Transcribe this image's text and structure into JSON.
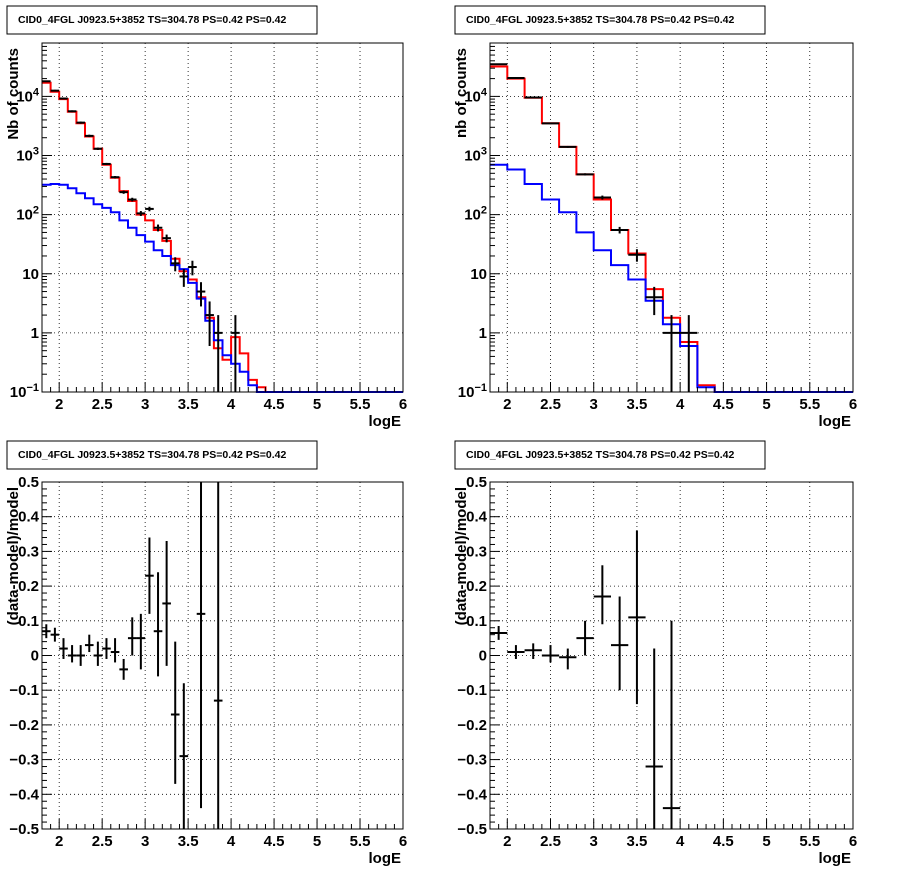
{
  "chart_data": [
    {
      "type": "histogram",
      "title": "CID0_4FGL J0923.5+3852 TS=304.78 PS=0.42 PS=0.42",
      "xlabel": "logE",
      "ylabel": "Nb of counts",
      "xlim": [
        1.8,
        6.0
      ],
      "ylim": [
        0.1,
        80000
      ],
      "yscale": "log",
      "grid": true,
      "x_ticks": [
        "2",
        "2.5",
        "3",
        "3.5",
        "4",
        "4.5",
        "5",
        "5.5",
        "6"
      ],
      "y_ticks": [
        "10^-1",
        "1",
        "10",
        "10^2",
        "10^3",
        "10^4"
      ],
      "bin_edges": [
        1.8,
        1.9,
        2.0,
        2.1,
        2.2,
        2.3,
        2.4,
        2.5,
        2.6,
        2.7,
        2.8,
        2.9,
        3.0,
        3.1,
        3.2,
        3.3,
        3.4,
        3.5,
        3.6,
        3.7,
        3.8,
        3.9,
        4.0,
        4.1,
        4.2,
        4.3,
        4.4,
        4.5,
        4.6,
        4.7,
        4.8,
        4.9,
        5.0,
        5.1,
        5.2,
        5.3,
        5.4,
        5.5,
        5.6,
        5.7,
        5.8,
        5.9,
        6.0
      ],
      "series": [
        {
          "color": "#ff0000",
          "values": [
            17000,
            12000,
            9000,
            5500,
            3500,
            2100,
            1300,
            700,
            420,
            250,
            170,
            100,
            80,
            55,
            36,
            18,
            11,
            8,
            4,
            1.8,
            0.55,
            0.35,
            0.85,
            0.45,
            0.16,
            0.12,
            0.1,
            0.1,
            0.1,
            0.1,
            0.1,
            0.1,
            0.1,
            0.1,
            0.1,
            0.1,
            0.1,
            0.1,
            0.1,
            0.1,
            0.1,
            0.1
          ]
        },
        {
          "color": "#0000ff",
          "values": [
            320,
            330,
            320,
            280,
            230,
            190,
            150,
            130,
            110,
            80,
            60,
            45,
            35,
            25,
            20,
            14,
            12,
            7,
            3.8,
            1.6,
            0.75,
            0.42,
            0.3,
            0.22,
            0.13,
            0.1,
            0.1,
            0.1,
            0.1,
            0.1,
            0.1,
            0.1,
            0.1,
            0.1,
            0.1,
            0.1,
            0.1,
            0.1,
            0.1,
            0.1,
            0.1,
            0.1
          ]
        }
      ],
      "points": [
        {
          "x": 1.85,
          "xerr": 0.05,
          "y": 18000,
          "ylo": 17500,
          "yhi": 18500
        },
        {
          "x": 1.95,
          "xerr": 0.05,
          "y": 12500,
          "ylo": 12100,
          "yhi": 12900
        },
        {
          "x": 2.05,
          "xerr": 0.05,
          "y": 9200,
          "ylo": 8900,
          "yhi": 9500
        },
        {
          "x": 2.15,
          "xerr": 0.05,
          "y": 5600,
          "ylo": 5400,
          "yhi": 5800
        },
        {
          "x": 2.25,
          "xerr": 0.05,
          "y": 3600,
          "ylo": 3450,
          "yhi": 3750
        },
        {
          "x": 2.35,
          "xerr": 0.05,
          "y": 2150,
          "ylo": 2050,
          "yhi": 2250
        },
        {
          "x": 2.45,
          "xerr": 0.05,
          "y": 1300,
          "ylo": 1240,
          "yhi": 1360
        },
        {
          "x": 2.55,
          "xerr": 0.05,
          "y": 720,
          "ylo": 690,
          "yhi": 750
        },
        {
          "x": 2.65,
          "xerr": 0.05,
          "y": 430,
          "ylo": 410,
          "yhi": 450
        },
        {
          "x": 2.75,
          "xerr": 0.05,
          "y": 240,
          "ylo": 225,
          "yhi": 255
        },
        {
          "x": 2.85,
          "xerr": 0.05,
          "y": 180,
          "ylo": 167,
          "yhi": 193
        },
        {
          "x": 2.95,
          "xerr": 0.05,
          "y": 105,
          "ylo": 95,
          "yhi": 115
        },
        {
          "x": 3.05,
          "xerr": 0.05,
          "y": 125,
          "ylo": 114,
          "yhi": 136
        },
        {
          "x": 3.15,
          "xerr": 0.05,
          "y": 60,
          "ylo": 52,
          "yhi": 68
        },
        {
          "x": 3.25,
          "xerr": 0.05,
          "y": 40,
          "ylo": 34,
          "yhi": 46
        },
        {
          "x": 3.35,
          "xerr": 0.05,
          "y": 15,
          "ylo": 11,
          "yhi": 19
        },
        {
          "x": 3.45,
          "xerr": 0.05,
          "y": 9,
          "ylo": 6,
          "yhi": 12
        },
        {
          "x": 3.55,
          "xerr": 0.05,
          "y": 13,
          "ylo": 9.4,
          "yhi": 16.6
        },
        {
          "x": 3.65,
          "xerr": 0.05,
          "y": 5,
          "ylo": 2.8,
          "yhi": 7.2
        },
        {
          "x": 3.75,
          "xerr": 0.05,
          "y": 2,
          "ylo": 0.6,
          "yhi": 3.4
        },
        {
          "x": 3.85,
          "xerr": 0.05,
          "y": 1,
          "ylo": 0.1,
          "yhi": 2
        },
        {
          "x": 4.05,
          "xerr": 0.05,
          "y": 1,
          "ylo": 0.1,
          "yhi": 2
        }
      ]
    },
    {
      "type": "histogram",
      "title": "CID0_4FGL J0923.5+3852 TS=304.78 PS=0.42 PS=0.42",
      "xlabel": "logE",
      "ylabel": "nb of counts",
      "xlim": [
        1.8,
        6.0
      ],
      "ylim": [
        0.1,
        80000
      ],
      "yscale": "log",
      "grid": true,
      "x_ticks": [
        "2",
        "2.5",
        "3",
        "3.5",
        "4",
        "4.5",
        "5",
        "5.5",
        "6"
      ],
      "y_ticks": [
        "10^-1",
        "1",
        "10",
        "10^2",
        "10^3",
        "10^4"
      ],
      "bin_edges": [
        1.8,
        2.0,
        2.2,
        2.4,
        2.6,
        2.8,
        3.0,
        3.2,
        3.4,
        3.6,
        3.8,
        4.0,
        4.2,
        4.4,
        4.6,
        4.8,
        5.0,
        5.2,
        5.4,
        5.6,
        5.8,
        6.0
      ],
      "series": [
        {
          "color": "#ff0000",
          "values": [
            32000,
            20000,
            9500,
            3500,
            1400,
            480,
            180,
            55,
            22,
            5.5,
            1.8,
            0.7,
            0.13,
            0.1,
            0.1,
            0.1,
            0.1,
            0.1,
            0.1,
            0.1,
            0.1
          ]
        },
        {
          "color": "#0000ff",
          "values": [
            700,
            580,
            330,
            180,
            110,
            50,
            25,
            14,
            8,
            3.5,
            1.4,
            0.6,
            0.12,
            0.1,
            0.1,
            0.1,
            0.1,
            0.1,
            0.1,
            0.1,
            0.1
          ]
        }
      ],
      "points": [
        {
          "x": 1.9,
          "xerr": 0.1,
          "y": 35000,
          "ylo": 34000,
          "yhi": 36000
        },
        {
          "x": 2.1,
          "xerr": 0.1,
          "y": 20500,
          "ylo": 20000,
          "yhi": 21000
        },
        {
          "x": 2.3,
          "xerr": 0.1,
          "y": 9600,
          "ylo": 9300,
          "yhi": 9900
        },
        {
          "x": 2.5,
          "xerr": 0.1,
          "y": 3500,
          "ylo": 3400,
          "yhi": 3600
        },
        {
          "x": 2.7,
          "xerr": 0.1,
          "y": 1400,
          "ylo": 1350,
          "yhi": 1450
        },
        {
          "x": 2.9,
          "xerr": 0.1,
          "y": 480,
          "ylo": 460,
          "yhi": 500
        },
        {
          "x": 3.1,
          "xerr": 0.1,
          "y": 195,
          "ylo": 180,
          "yhi": 210
        },
        {
          "x": 3.3,
          "xerr": 0.1,
          "y": 55,
          "ylo": 48,
          "yhi": 62
        },
        {
          "x": 3.5,
          "xerr": 0.1,
          "y": 21,
          "ylo": 16,
          "yhi": 26
        },
        {
          "x": 3.7,
          "xerr": 0.1,
          "y": 4,
          "ylo": 2,
          "yhi": 6
        },
        {
          "x": 3.9,
          "xerr": 0.1,
          "y": 1,
          "ylo": 0.1,
          "yhi": 2
        },
        {
          "x": 4.1,
          "xerr": 0.1,
          "y": 1,
          "ylo": 0.1,
          "yhi": 2
        }
      ]
    },
    {
      "type": "scatter",
      "title": "CID0_4FGL J0923.5+3852 TS=304.78 PS=0.42 PS=0.42",
      "xlabel": "logE",
      "ylabel": "(data-model)/model",
      "xlim": [
        1.8,
        6.0
      ],
      "ylim": [
        -0.5,
        0.5
      ],
      "yscale": "linear",
      "grid": true,
      "x_ticks": [
        "2",
        "2.5",
        "3",
        "3.5",
        "4",
        "4.5",
        "5",
        "5.5",
        "6"
      ],
      "y_ticks": [
        "-0.5",
        "-0.4",
        "-0.3",
        "-0.2",
        "-0.1",
        "0",
        "0.1",
        "0.2",
        "0.3",
        "0.4",
        "0.5"
      ],
      "points": [
        {
          "x": 1.85,
          "xerr": 0.05,
          "y": 0.07,
          "ylo": 0.05,
          "yhi": 0.09
        },
        {
          "x": 1.95,
          "xerr": 0.05,
          "y": 0.06,
          "ylo": 0.04,
          "yhi": 0.08
        },
        {
          "x": 2.05,
          "xerr": 0.05,
          "y": 0.02,
          "ylo": -0.01,
          "yhi": 0.05
        },
        {
          "x": 2.15,
          "xerr": 0.05,
          "y": 0.0,
          "ylo": -0.02,
          "yhi": 0.03
        },
        {
          "x": 2.25,
          "xerr": 0.05,
          "y": 0.0,
          "ylo": -0.03,
          "yhi": 0.03
        },
        {
          "x": 2.35,
          "xerr": 0.05,
          "y": 0.03,
          "ylo": 0.01,
          "yhi": 0.06
        },
        {
          "x": 2.45,
          "xerr": 0.05,
          "y": 0.0,
          "ylo": -0.03,
          "yhi": 0.04
        },
        {
          "x": 2.55,
          "xerr": 0.05,
          "y": 0.02,
          "ylo": -0.01,
          "yhi": 0.05
        },
        {
          "x": 2.65,
          "xerr": 0.05,
          "y": 0.01,
          "ylo": -0.02,
          "yhi": 0.05
        },
        {
          "x": 2.75,
          "xerr": 0.05,
          "y": -0.04,
          "ylo": -0.07,
          "yhi": -0.01
        },
        {
          "x": 2.85,
          "xerr": 0.05,
          "y": 0.05,
          "ylo": 0.0,
          "yhi": 0.11
        },
        {
          "x": 2.95,
          "xerr": 0.05,
          "y": 0.05,
          "ylo": -0.04,
          "yhi": 0.12
        },
        {
          "x": 3.05,
          "xerr": 0.05,
          "y": 0.23,
          "ylo": 0.12,
          "yhi": 0.34
        },
        {
          "x": 3.15,
          "xerr": 0.05,
          "y": 0.07,
          "ylo": -0.06,
          "yhi": 0.24
        },
        {
          "x": 3.25,
          "xerr": 0.05,
          "y": 0.15,
          "ylo": -0.03,
          "yhi": 0.33
        },
        {
          "x": 3.35,
          "xerr": 0.05,
          "y": -0.17,
          "ylo": -0.37,
          "yhi": 0.04
        },
        {
          "x": 3.45,
          "xerr": 0.05,
          "y": -0.29,
          "ylo": -0.5,
          "yhi": -0.08
        },
        {
          "x": 3.65,
          "xerr": 0.05,
          "y": 0.12,
          "ylo": -0.44,
          "yhi": 0.5
        },
        {
          "x": 3.85,
          "xerr": 0.05,
          "y": -0.13,
          "ylo": -0.5,
          "yhi": 0.5
        }
      ]
    },
    {
      "type": "scatter",
      "title": "CID0_4FGL J0923.5+3852 TS=304.78 PS=0.42 PS=0.42",
      "xlabel": "logE",
      "ylabel": "(data-model)/model",
      "xlim": [
        1.8,
        6.0
      ],
      "ylim": [
        -0.5,
        0.5
      ],
      "yscale": "linear",
      "grid": true,
      "x_ticks": [
        "2",
        "2.5",
        "3",
        "3.5",
        "4",
        "4.5",
        "5",
        "5.5",
        "6"
      ],
      "y_ticks": [
        "-0.5",
        "-0.4",
        "-0.3",
        "-0.2",
        "-0.1",
        "0",
        "0.1",
        "0.2",
        "0.3",
        "0.4",
        "0.5"
      ],
      "points": [
        {
          "x": 1.9,
          "xerr": 0.1,
          "y": 0.065,
          "ylo": 0.045,
          "yhi": 0.085
        },
        {
          "x": 2.1,
          "xerr": 0.1,
          "y": 0.01,
          "ylo": -0.01,
          "yhi": 0.03
        },
        {
          "x": 2.3,
          "xerr": 0.1,
          "y": 0.015,
          "ylo": -0.01,
          "yhi": 0.035
        },
        {
          "x": 2.5,
          "xerr": 0.1,
          "y": 0.0,
          "ylo": -0.02,
          "yhi": 0.03
        },
        {
          "x": 2.7,
          "xerr": 0.1,
          "y": -0.005,
          "ylo": -0.04,
          "yhi": 0.02
        },
        {
          "x": 2.9,
          "xerr": 0.1,
          "y": 0.05,
          "ylo": 0.0,
          "yhi": 0.1
        },
        {
          "x": 3.1,
          "xerr": 0.1,
          "y": 0.17,
          "ylo": 0.09,
          "yhi": 0.26
        },
        {
          "x": 3.3,
          "xerr": 0.1,
          "y": 0.03,
          "ylo": -0.1,
          "yhi": 0.17
        },
        {
          "x": 3.5,
          "xerr": 0.1,
          "y": 0.11,
          "ylo": -0.14,
          "yhi": 0.36
        },
        {
          "x": 3.7,
          "xerr": 0.1,
          "y": -0.32,
          "ylo": -0.5,
          "yhi": 0.02
        },
        {
          "x": 3.9,
          "xerr": 0.1,
          "y": -0.44,
          "ylo": -0.5,
          "yhi": 0.1
        }
      ]
    }
  ]
}
